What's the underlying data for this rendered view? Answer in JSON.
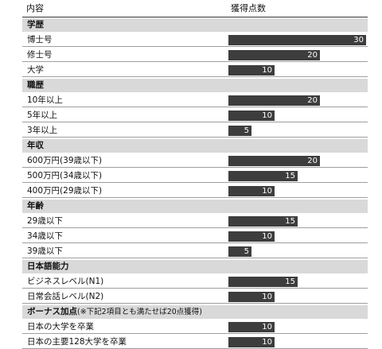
{
  "header": {
    "left": "内容",
    "right": "獲得点数"
  },
  "chart_data": {
    "type": "bar",
    "orientation": "horizontal",
    "xlim": [
      0,
      30
    ],
    "groups": [
      {
        "label": "学歴",
        "note": "",
        "items": [
          {
            "label": "博士号",
            "value": 30
          },
          {
            "label": "修士号",
            "value": 20
          },
          {
            "label": "大学",
            "value": 10
          }
        ]
      },
      {
        "label": "職歴",
        "note": "",
        "items": [
          {
            "label": "10年以上",
            "value": 20
          },
          {
            "label": "5年以上",
            "value": 10
          },
          {
            "label": "3年以上",
            "value": 5
          }
        ]
      },
      {
        "label": "年収",
        "note": "",
        "items": [
          {
            "label": "600万円(39歳以下)",
            "value": 20
          },
          {
            "label": "500万円(34歳以下)",
            "value": 15
          },
          {
            "label": "400万円(29歳以下)",
            "value": 10
          }
        ]
      },
      {
        "label": "年齢",
        "note": "",
        "items": [
          {
            "label": "29歳以下",
            "value": 15
          },
          {
            "label": "34歳以下",
            "value": 10
          },
          {
            "label": "39歳以下",
            "value": 5
          }
        ]
      },
      {
        "label": "日本語能力",
        "note": "",
        "items": [
          {
            "label": "ビジネスレベル(N1)",
            "value": 15
          },
          {
            "label": "日常会話レベル(N2)",
            "value": 10
          }
        ]
      },
      {
        "label": "ボーナス加点",
        "note": "(※下記2項目とも満たせば20点獲得)",
        "items": [
          {
            "label": "日本の大学を卒業",
            "value": 10
          },
          {
            "label": "日本の主要128大学を卒業",
            "value": 10
          }
        ]
      }
    ]
  }
}
